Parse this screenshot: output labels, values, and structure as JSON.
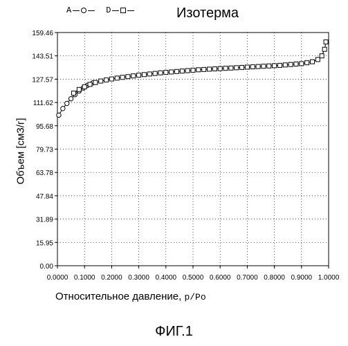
{
  "chart_data": {
    "type": "line",
    "title": "Изотерма",
    "xlabel": "Относительное давление,",
    "xlabel_suffix": "p/Po",
    "ylabel": "Объем [см3/г]",
    "xlim": [
      0,
      1
    ],
    "ylim": [
      0,
      159.46
    ],
    "grid": true,
    "legend": "top-left",
    "x_ticks": [
      "0.0000",
      "0.1000",
      "0.2000",
      "0.3000",
      "0.4000",
      "0.5000",
      "0.6000",
      "0.7000",
      "0.8000",
      "0.9000",
      "1.0000"
    ],
    "y_ticks": [
      "0.00",
      "15.95",
      "31.89",
      "47.84",
      "63.78",
      "79.73",
      "95.68",
      "111.62",
      "127.57",
      "143.51",
      "159.46"
    ],
    "series": [
      {
        "name": "A",
        "marker": "circle",
        "x": [
          0.005,
          0.02,
          0.035,
          0.05,
          0.065,
          0.08,
          0.095,
          0.11,
          0.13
        ],
        "y": [
          103.0,
          107.5,
          111.0,
          114.2,
          117.0,
          119.5,
          121.5,
          123.3,
          125.0
        ]
      },
      {
        "name": "D",
        "marker": "square",
        "x": [
          0.06,
          0.08,
          0.1,
          0.12,
          0.14,
          0.16,
          0.18,
          0.2,
          0.22,
          0.24,
          0.26,
          0.28,
          0.3,
          0.32,
          0.34,
          0.36,
          0.38,
          0.4,
          0.42,
          0.44,
          0.46,
          0.48,
          0.5,
          0.52,
          0.54,
          0.56,
          0.58,
          0.6,
          0.62,
          0.64,
          0.66,
          0.68,
          0.7,
          0.72,
          0.74,
          0.76,
          0.78,
          0.8,
          0.82,
          0.84,
          0.86,
          0.88,
          0.9,
          0.92,
          0.94,
          0.96,
          0.975,
          0.985,
          0.99
        ],
        "y": [
          118.0,
          120.5,
          122.3,
          124.0,
          125.3,
          126.3,
          127.0,
          127.7,
          128.3,
          128.8,
          129.3,
          129.8,
          130.3,
          130.7,
          131.1,
          131.5,
          131.9,
          132.2,
          132.5,
          132.8,
          133.1,
          133.4,
          133.7,
          134.0,
          134.2,
          134.4,
          134.6,
          134.8,
          135.0,
          135.2,
          135.4,
          135.6,
          135.8,
          136.0,
          136.2,
          136.4,
          136.6,
          136.8,
          137.0,
          137.3,
          137.6,
          137.9,
          138.2,
          138.8,
          139.5,
          141.0,
          143.5,
          148.0,
          153.0
        ]
      }
    ]
  },
  "figure_caption": "ФИГ.1"
}
